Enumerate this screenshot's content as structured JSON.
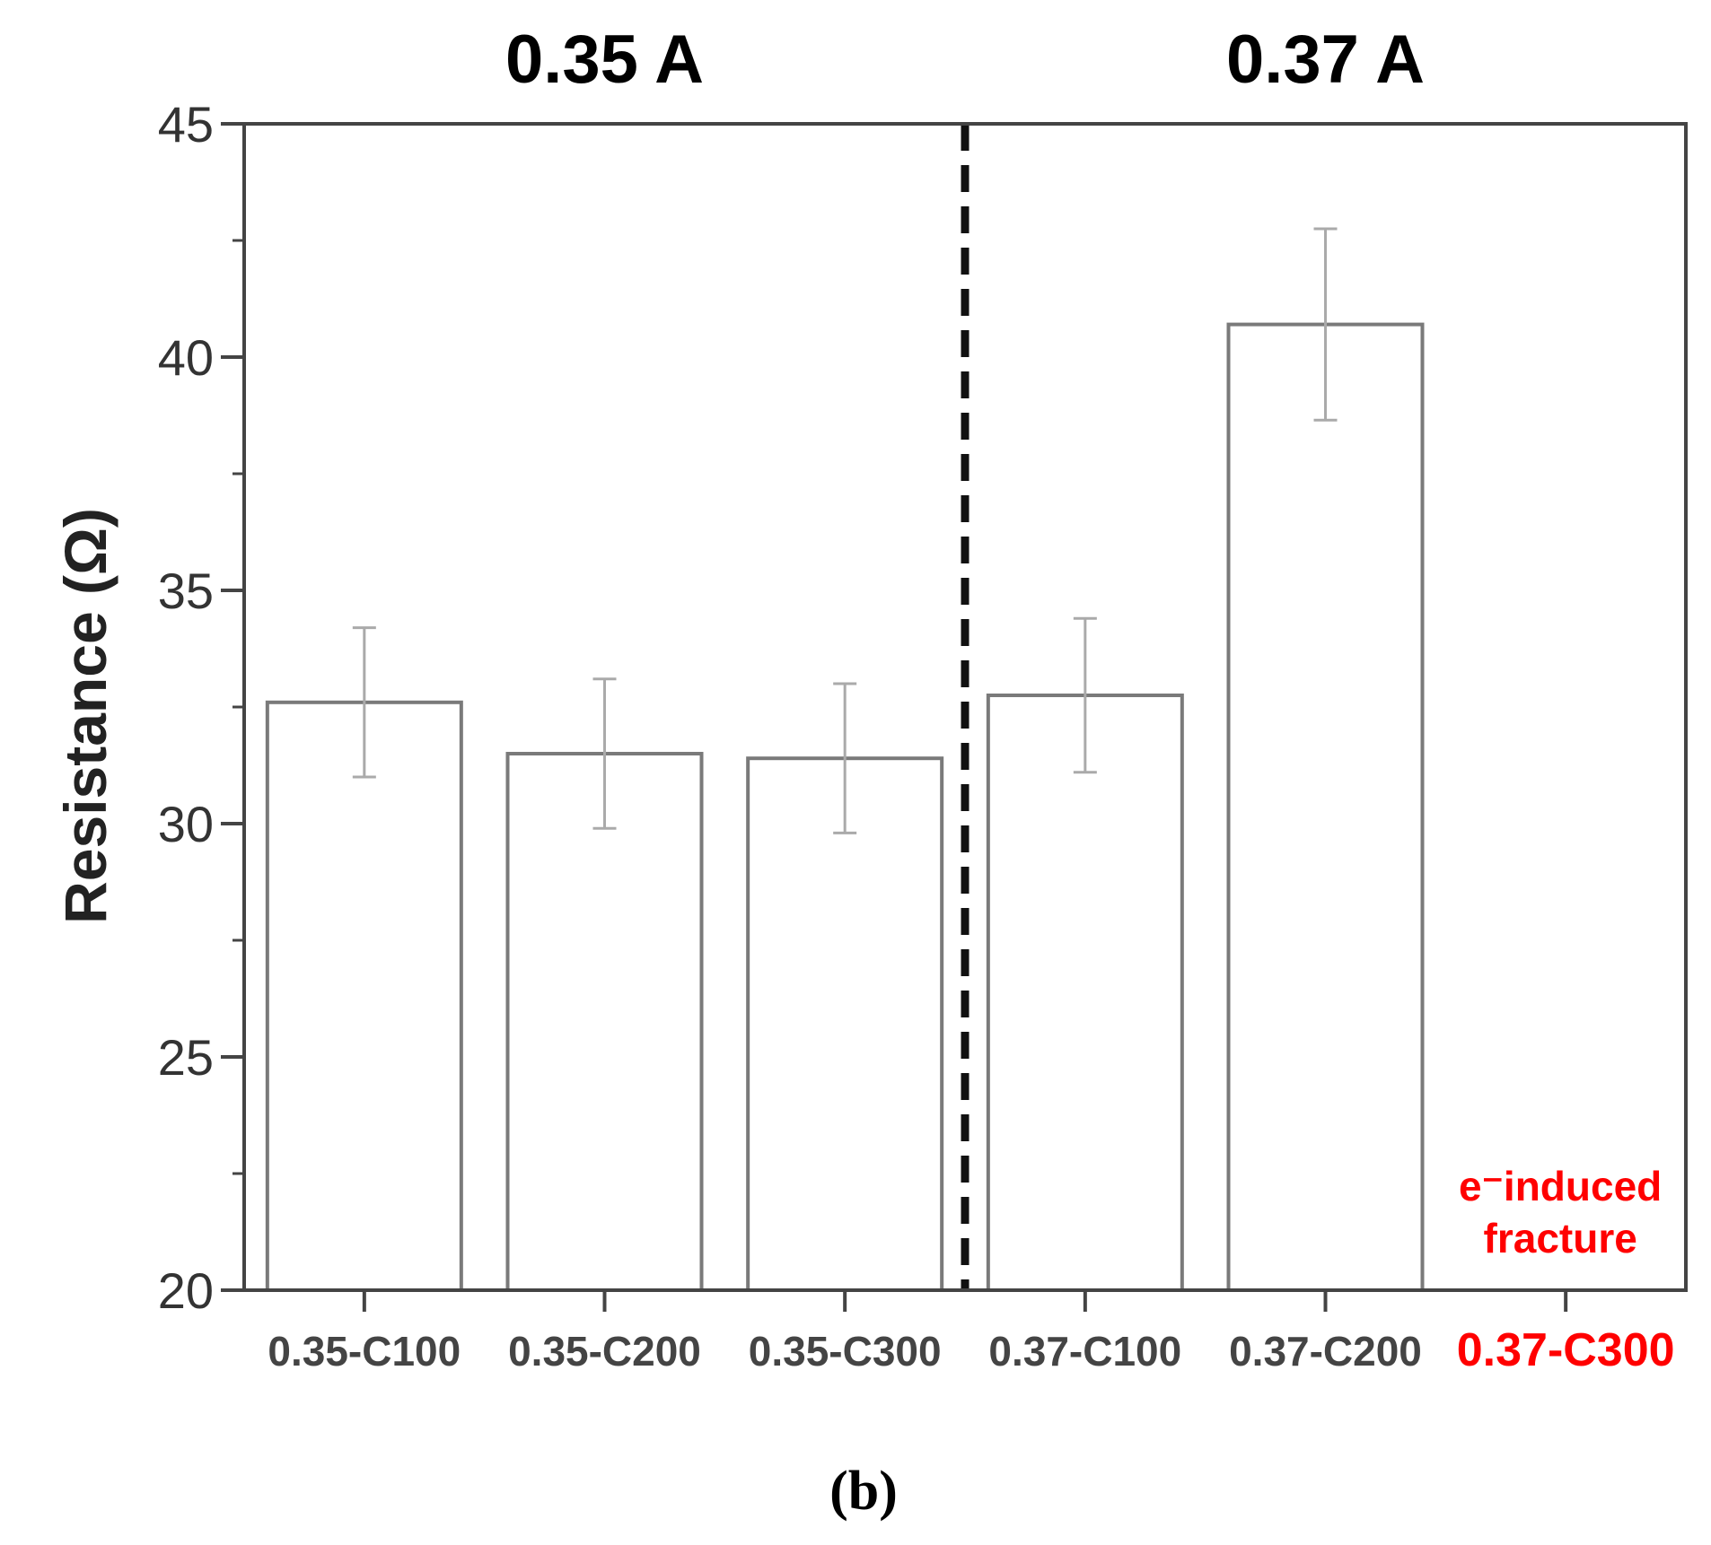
{
  "chart_data": {
    "type": "bar",
    "title": "",
    "xlabel": "",
    "ylabel": "Resistance (Ω)",
    "ylim": [
      20,
      45
    ],
    "yticks": [
      "20",
      "25",
      "30",
      "35",
      "40",
      "45"
    ],
    "categories": [
      "0.35-C100",
      "0.35-C200",
      "0.35-C300",
      "0.37-C100",
      "0.37-C200",
      "0.37-C300"
    ],
    "values": [
      32.6,
      31.5,
      31.4,
      32.75,
      40.7,
      null
    ],
    "errors": [
      1.6,
      1.6,
      1.6,
      1.65,
      2.05,
      null
    ],
    "groups": [
      {
        "label": "0.35 A",
        "categories": [
          "0.35-C100",
          "0.35-C200",
          "0.35-C300"
        ]
      },
      {
        "label": "0.37 A",
        "categories": [
          "0.37-C100",
          "0.37-C200",
          "0.37-C300"
        ]
      }
    ],
    "group_divider_after": 3,
    "highlight_category": "0.37-C300",
    "highlight_color": "#ff0000",
    "annotation": {
      "line1": "e⁻induced",
      "line2": "fracture",
      "category": "0.37-C300",
      "color": "#ff0000"
    },
    "grid": false,
    "legend": "none"
  },
  "panel_label": "(b)"
}
